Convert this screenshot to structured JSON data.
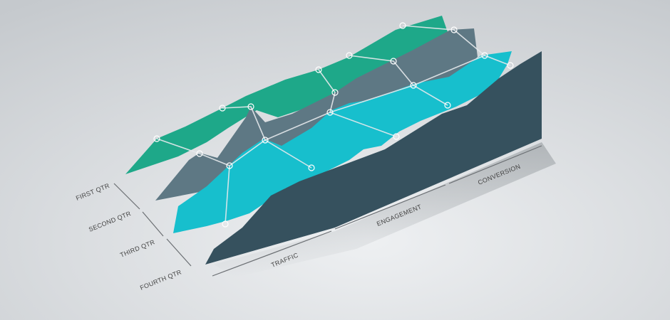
{
  "rows": [
    "FIRST QTR",
    "SECOND QTR",
    "THIRD QTR",
    "FOURTH QTR"
  ],
  "columns": [
    "TRAFFIC",
    "ENGAGEMENT",
    "CONVERSION"
  ]
}
